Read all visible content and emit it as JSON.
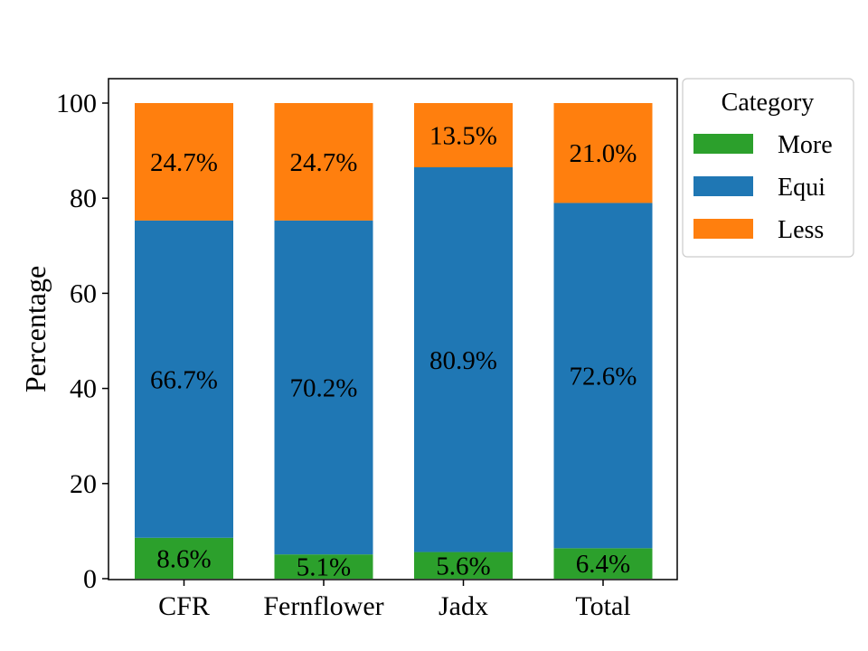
{
  "chart_data": {
    "type": "bar",
    "stacked": true,
    "categories": [
      "CFR",
      "Fernflower",
      "Jadx",
      "Total"
    ],
    "series": [
      {
        "name": "More",
        "values": [
          8.6,
          5.1,
          5.6,
          6.4
        ],
        "labels": [
          "8.6%",
          "5.1%",
          "5.6%",
          "6.4%"
        ],
        "color": "#2ca02c"
      },
      {
        "name": "Equi",
        "values": [
          66.7,
          70.2,
          80.9,
          72.6
        ],
        "labels": [
          "66.7%",
          "70.2%",
          "80.9%",
          "72.6%"
        ],
        "color": "#1f77b4"
      },
      {
        "name": "Less",
        "values": [
          24.7,
          24.7,
          13.5,
          21.0
        ],
        "labels": [
          "24.7%",
          "24.7%",
          "13.5%",
          "21.0%"
        ],
        "color": "#ff7f0e"
      }
    ],
    "ylabel": "Percentage",
    "xlabel": "",
    "ylim": [
      0,
      105
    ],
    "yticks": [
      0,
      20,
      40,
      60,
      80,
      100
    ],
    "grid": false,
    "legend": {
      "title": "Category",
      "placement": "outside-top-right"
    }
  }
}
